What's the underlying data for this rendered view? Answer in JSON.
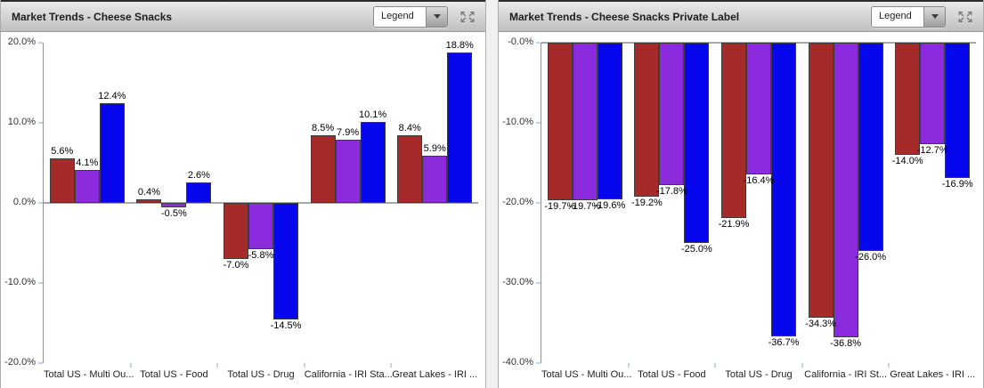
{
  "colors": {
    "series": [
      "#a52b2b",
      "#8b2bdd",
      "#0707ee"
    ],
    "bar_border": "#3c3c3c",
    "axis": "#919191",
    "zero_line": "#a8a8a8",
    "tick": "#c3d5ec",
    "label_text": "#000000",
    "axis_text": "#333333"
  },
  "panels": [
    {
      "title": "Market Trends - Cheese Snacks",
      "legend_label": "Legend",
      "icons": [
        "chevron-down-icon",
        "expand-arrows-icon"
      ]
    },
    {
      "title": "Market Trends - Cheese Snacks Private Label",
      "legend_label": "Legend",
      "icons": [
        "chevron-down-icon",
        "expand-arrows-icon"
      ]
    }
  ],
  "chart_data": [
    {
      "type": "bar",
      "title": "Market Trends - Cheese Snacks",
      "ylim": [
        -20,
        20
      ],
      "grid": false,
      "legend_position": "collapsed-dropdown",
      "yticks": [
        {
          "v": 20,
          "label": "20.0%"
        },
        {
          "v": 10,
          "label": "10.0%"
        },
        {
          "v": 0,
          "label": "0.0%"
        },
        {
          "v": -10,
          "label": "-10.0%"
        },
        {
          "v": -20,
          "label": "-20.0%"
        }
      ],
      "categories": [
        "Total US - Multi Ou...",
        "Total US - Food",
        "Total US - Drug",
        "California - IRI Sta...",
        "Great Lakes - IRI ..."
      ],
      "series": [
        {
          "values": [
            5.6,
            0.4,
            -7.0,
            8.5,
            8.4
          ],
          "labels": [
            "5.6%",
            "0.4%",
            "-7.0%",
            "8.5%",
            "8.4%"
          ]
        },
        {
          "values": [
            4.1,
            -0.5,
            -5.8,
            7.9,
            5.9
          ],
          "labels": [
            "4.1%",
            "-0.5%",
            "-5.8%",
            "7.9%",
            "5.9%"
          ]
        },
        {
          "values": [
            12.4,
            2.6,
            -14.5,
            10.1,
            18.8
          ],
          "labels": [
            "12.4%",
            "2.6%",
            "-14.5%",
            "10.1%",
            "18.8%"
          ]
        }
      ]
    },
    {
      "type": "bar",
      "title": "Market Trends - Cheese Snacks Private Label",
      "ylim": [
        -40,
        0
      ],
      "grid": false,
      "legend_position": "collapsed-dropdown",
      "yticks": [
        {
          "v": 0,
          "label": "-0.0%"
        },
        {
          "v": -10,
          "label": "-10.0%"
        },
        {
          "v": -20,
          "label": "-20.0%"
        },
        {
          "v": -30,
          "label": "-30.0%"
        },
        {
          "v": -40,
          "label": "-40.0%"
        }
      ],
      "categories": [
        "Total US - Multi Ou...",
        "Total US - Food",
        "Total US - Drug",
        "California - IRI St...",
        "Great Lakes - IRI ..."
      ],
      "series": [
        {
          "values": [
            -19.7,
            -19.2,
            -21.9,
            -34.3,
            -14.0
          ],
          "labels": [
            "-19.7%",
            "-19.2%",
            "-21.9%",
            "-34.3%",
            "-14.0%"
          ]
        },
        {
          "values": [
            -19.7,
            -17.8,
            -16.4,
            -36.8,
            -12.7
          ],
          "labels": [
            "-19.7%",
            "-17.8%",
            "-16.4%",
            "-36.8%",
            "-12.7%"
          ]
        },
        {
          "values": [
            -19.6,
            -25.0,
            -36.7,
            -26.0,
            -16.9
          ],
          "labels": [
            "-19.6%",
            "-25.0%",
            "-36.7%",
            "-26.0%",
            "-16.9%"
          ]
        }
      ]
    }
  ]
}
